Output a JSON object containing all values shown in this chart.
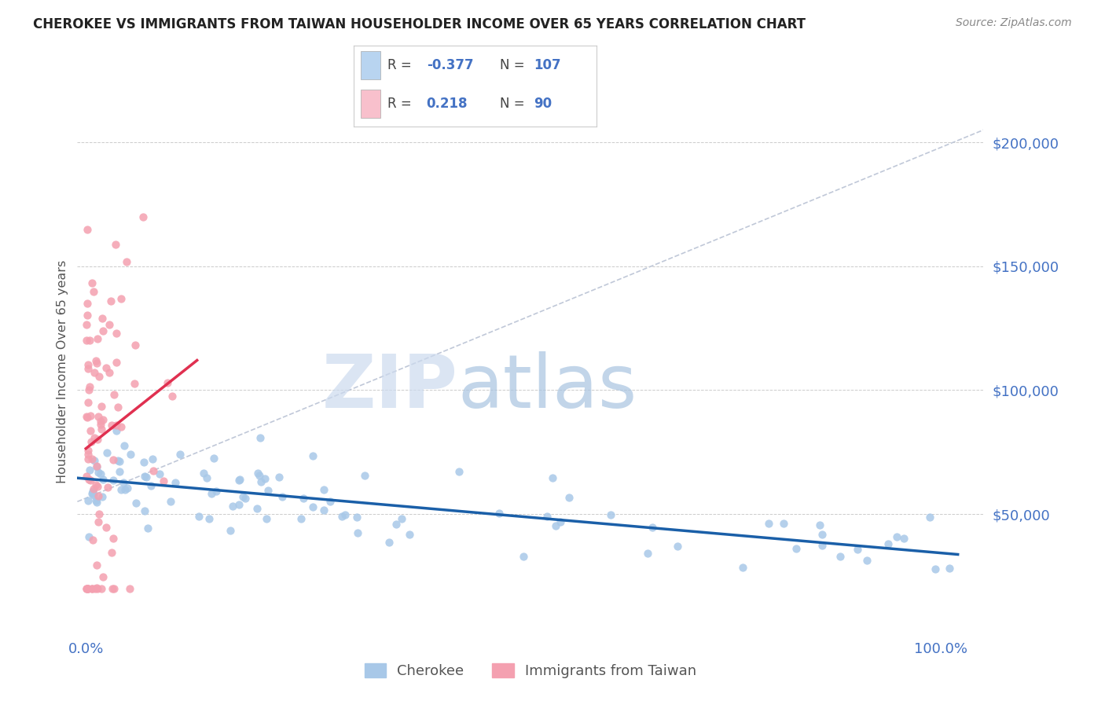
{
  "title": "CHEROKEE VS IMMIGRANTS FROM TAIWAN HOUSEHOLDER INCOME OVER 65 YEARS CORRELATION CHART",
  "source": "Source: ZipAtlas.com",
  "ylabel": "Householder Income Over 65 years",
  "ylim": [
    0,
    215000
  ],
  "xlim": [
    -0.01,
    1.05
  ],
  "series1_name": "Cherokee",
  "series2_name": "Immigrants from Taiwan",
  "series1_color": "#a8c8e8",
  "series2_color": "#f4a0b0",
  "series1_line_color": "#1a5fa8",
  "series2_line_color": "#e03050",
  "series1_R": -0.377,
  "series1_N": 107,
  "series2_R": 0.218,
  "series2_N": 90,
  "axis_color": "#4472c4",
  "title_color": "#222222",
  "source_color": "#888888",
  "grid_color": "#cccccc",
  "legend_box_color1": "#b8d4f0",
  "legend_box_color2": "#f8c0cc",
  "watermark_zip_color": "#d0dff0",
  "watermark_atlas_color": "#a0c0e0"
}
